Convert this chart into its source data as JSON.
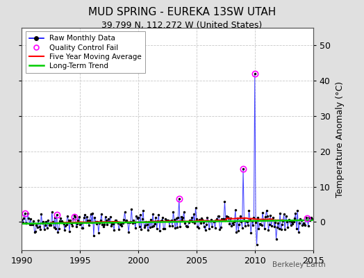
{
  "title": "MUD SPRING - EUREKA 13SW UTAH",
  "subtitle": "39.799 N, 112.272 W (United States)",
  "ylabel": "Temperature Anomaly (°C)",
  "watermark": "Berkeley Earth",
  "xlim": [
    1990,
    2015
  ],
  "ylim": [
    -8,
    55
  ],
  "yticks": [
    0,
    10,
    20,
    30,
    40,
    50
  ],
  "xticks": [
    1990,
    1995,
    2000,
    2005,
    2010,
    2015
  ],
  "bg_color": "#e0e0e0",
  "plot_bg_color": "#ffffff",
  "grid_color": "#c8c8c8",
  "raw_line_color": "#4040ff",
  "raw_dot_color": "#000000",
  "qc_fail_color": "#ff00ff",
  "moving_avg_color": "#ff0000",
  "trend_color": "#00cc00",
  "qc_fail_points": [
    [
      1990.25,
      2.5
    ],
    [
      1993.0,
      2.0
    ],
    [
      1994.5,
      1.5
    ],
    [
      2003.5,
      6.5
    ],
    [
      2009.0,
      15.0
    ],
    [
      2010.0,
      42.0
    ],
    [
      2014.5,
      1.0
    ]
  ]
}
